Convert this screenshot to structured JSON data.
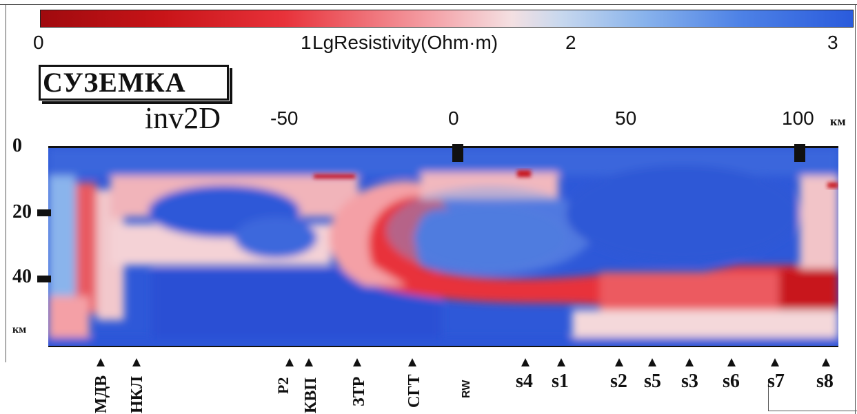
{
  "colorbar": {
    "ticks": [
      "0",
      "1",
      "2",
      "3"
    ],
    "label": "LgResistivity(Ohm·m)",
    "colors": [
      "#a00a0e",
      "#e8323a",
      "#f4a0a6",
      "#f4e0e2",
      "#8ab4ec",
      "#2a5bdc"
    ]
  },
  "title": "СУЗЕМКА",
  "subtitle": "inv2D",
  "x_axis": {
    "ticks": [
      "-50",
      "0",
      "50",
      "100"
    ],
    "unit": "км"
  },
  "y_axis": {
    "ticks": [
      "0",
      "20",
      "40"
    ],
    "unit": "км"
  },
  "stations": [
    {
      "label": "МДВ"
    },
    {
      "label": "НКЛ"
    },
    {
      "label": "Р2"
    },
    {
      "label": "КВП"
    },
    {
      "label": "ЗТР"
    },
    {
      "label": "СГТ"
    },
    {
      "label": "RW"
    },
    {
      "label": "s4"
    },
    {
      "label": "s1"
    },
    {
      "label": "s2"
    },
    {
      "label": "s5"
    },
    {
      "label": "s3"
    },
    {
      "label": "s6"
    },
    {
      "label": "s7"
    },
    {
      "label": "s8"
    }
  ]
}
